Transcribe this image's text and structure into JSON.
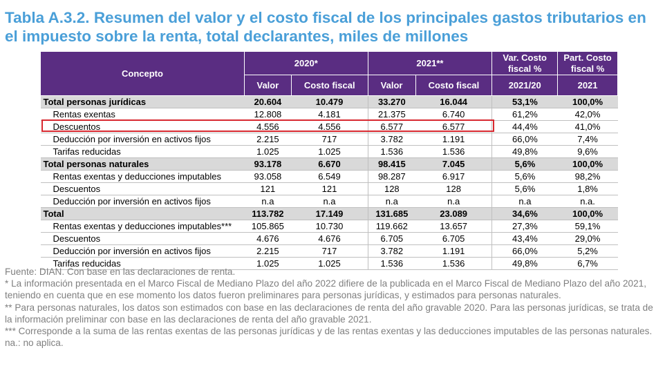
{
  "title": {
    "code": "Tabla A.3.2.",
    "text": "Resumen del valor y el costo fiscal de los principales gastos tributarios en el impuesto sobre la renta, total declarantes, miles de millones"
  },
  "header": {
    "concepto": "Concepto",
    "y2020": "2020*",
    "y2021": "2021**",
    "var": "Var. Costo fiscal  %",
    "part": "Part. Costo fiscal %",
    "valor": "Valor",
    "costo": "Costo fiscal",
    "var_year": "2021/20",
    "part_year": "2021"
  },
  "rows": [
    {
      "label": "Total personas jurídicas",
      "v2020": "20.604",
      "c2020": "10.479",
      "v2021": "33.270",
      "c2021": "16.044",
      "var": "53,1%",
      "part": "100,0%"
    },
    {
      "label": "Rentas exentas",
      "v2020": "12.808",
      "c2020": "4.181",
      "v2021": "21.375",
      "c2021": "6.740",
      "var": "61,2%",
      "part": "42,0%"
    },
    {
      "label": "Descuentos",
      "v2020": "4.556",
      "c2020": "4.556",
      "v2021": "6.577",
      "c2021": "6.577",
      "var": "44,4%",
      "part": "41,0%"
    },
    {
      "label": "Deducción por inversión en activos fijos",
      "v2020": "2.215",
      "c2020": "717",
      "v2021": "3.782",
      "c2021": "1.191",
      "var": "66,0%",
      "part": "7,4%"
    },
    {
      "label": "Tarifas reducidas",
      "v2020": "1.025",
      "c2020": "1.025",
      "v2021": "1.536",
      "c2021": "1.536",
      "var": "49,8%",
      "part": "9,6%"
    },
    {
      "label": "Total personas naturales",
      "v2020": "93.178",
      "c2020": "6.670",
      "v2021": "98.415",
      "c2021": "7.045",
      "var": "5,6%",
      "part": "100,0%"
    },
    {
      "label": "Rentas exentas y deducciones imputables",
      "v2020": "93.058",
      "c2020": "6.549",
      "v2021": "98.287",
      "c2021": "6.917",
      "var": "5,6%",
      "part": "98,2%"
    },
    {
      "label": "Descuentos",
      "v2020": "121",
      "c2020": "121",
      "v2021": "128",
      "c2021": "128",
      "var": "5,6%",
      "part": "1,8%"
    },
    {
      "label": "Deducción por inversión en activos fijos",
      "v2020": "n.a",
      "c2020": "n.a",
      "v2021": "n.a",
      "c2021": "n.a",
      "var": "n.a",
      "part": "n.a."
    },
    {
      "label": "Total",
      "v2020": "113.782",
      "c2020": "17.149",
      "v2021": "131.685",
      "c2021": "23.089",
      "var": "34,6%",
      "part": "100,0%"
    },
    {
      "label": "Rentas exentas y deducciones imputables***",
      "v2020": "105.865",
      "c2020": "10.730",
      "v2021": "119.662",
      "c2021": "13.657",
      "var": "27,3%",
      "part": "59,1%"
    },
    {
      "label": "Descuentos",
      "v2020": "4.676",
      "c2020": "4.676",
      "v2021": "6.705",
      "c2021": "6.705",
      "var": "43,4%",
      "part": "29,0%"
    },
    {
      "label": "Deducción por inversión en activos fijos",
      "v2020": "2.215",
      "c2020": "717",
      "v2021": "3.782",
      "c2021": "1.191",
      "var": "66,0%",
      "part": "5,2%"
    },
    {
      "label": "Tarifas reducidas",
      "v2020": "1.025",
      "c2020": "1.025",
      "v2021": "1.536",
      "c2021": "1.536",
      "var": "49,8%",
      "part": "6,7%"
    }
  ],
  "notes": [
    "Fuente: DIAN. Con base en las declaraciones de renta.",
    "* La información presentada en el Marco Fiscal de Mediano Plazo del año 2022 difiere de la publicada en el Marco Fiscal de Mediano Plazo del año 2021, teniendo en cuenta que en ese momento los datos fueron preliminares para personas jurídicas, y estimados para personas naturales.",
    "** Para personas naturales, los datos son estimados con base en las declaraciones de renta del año gravable 2020. Para las personas jurídicas, se trata de la información preliminar con base en las declaraciones de renta del año gravable 2021.",
    "*** Corresponde a la suma de las rentas exentas de las personas jurídicas y de las rentas exentas y las deducciones imputables de las personas naturales. na.: no aplica."
  ],
  "colors": {
    "header_bg": "#5a2d82",
    "title": "#4a9fd8",
    "group_bg": "#d9d9d9",
    "highlight": "#d8282f"
  }
}
